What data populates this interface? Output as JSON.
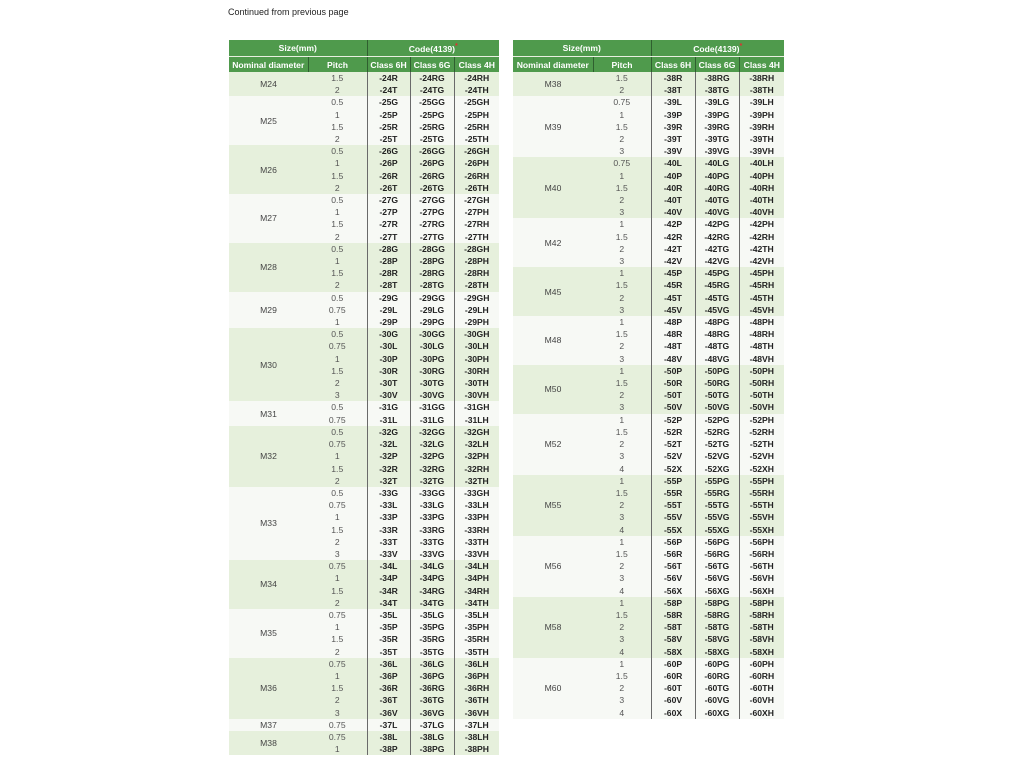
{
  "continued_note": "Continued from previous page",
  "headers": {
    "size": "Size(mm)",
    "code": "Code(4139)",
    "code_mark": "*",
    "nominal": "Nominal diameter",
    "pitch": "Pitch",
    "c6h": "Class 6H",
    "c6g": "Class 6G",
    "c4h": "Class 4H"
  },
  "colors": {
    "header_green": "#4f9a4c",
    "row_green": "#e6f0dc",
    "row_light": "#f7f9f5",
    "asterisk": "#e03030"
  },
  "left_table": [
    {
      "size": "M24",
      "rows": [
        [
          "1.5",
          "-24R",
          "-24RG",
          "-24RH"
        ],
        [
          "2",
          "-24T",
          "-24TG",
          "-24TH"
        ]
      ]
    },
    {
      "size": "M25",
      "rows": [
        [
          "0.5",
          "-25G",
          "-25GG",
          "-25GH"
        ],
        [
          "1",
          "-25P",
          "-25PG",
          "-25PH"
        ],
        [
          "1.5",
          "-25R",
          "-25RG",
          "-25RH"
        ],
        [
          "2",
          "-25T",
          "-25TG",
          "-25TH"
        ]
      ]
    },
    {
      "size": "M26",
      "rows": [
        [
          "0.5",
          "-26G",
          "-26GG",
          "-26GH"
        ],
        [
          "1",
          "-26P",
          "-26PG",
          "-26PH"
        ],
        [
          "1.5",
          "-26R",
          "-26RG",
          "-26RH"
        ],
        [
          "2",
          "-26T",
          "-26TG",
          "-26TH"
        ]
      ]
    },
    {
      "size": "M27",
      "rows": [
        [
          "0.5",
          "-27G",
          "-27GG",
          "-27GH"
        ],
        [
          "1",
          "-27P",
          "-27PG",
          "-27PH"
        ],
        [
          "1.5",
          "-27R",
          "-27RG",
          "-27RH"
        ],
        [
          "2",
          "-27T",
          "-27TG",
          "-27TH"
        ]
      ]
    },
    {
      "size": "M28",
      "rows": [
        [
          "0.5",
          "-28G",
          "-28GG",
          "-28GH"
        ],
        [
          "1",
          "-28P",
          "-28PG",
          "-28PH"
        ],
        [
          "1.5",
          "-28R",
          "-28RG",
          "-28RH"
        ],
        [
          "2",
          "-28T",
          "-28TG",
          "-28TH"
        ]
      ]
    },
    {
      "size": "M29",
      "rows": [
        [
          "0.5",
          "-29G",
          "-29GG",
          "-29GH"
        ],
        [
          "0.75",
          "-29L",
          "-29LG",
          "-29LH"
        ],
        [
          "1",
          "-29P",
          "-29PG",
          "-29PH"
        ]
      ]
    },
    {
      "size": "M30",
      "rows": [
        [
          "0.5",
          "-30G",
          "-30GG",
          "-30GH"
        ],
        [
          "0.75",
          "-30L",
          "-30LG",
          "-30LH"
        ],
        [
          "1",
          "-30P",
          "-30PG",
          "-30PH"
        ],
        [
          "1.5",
          "-30R",
          "-30RG",
          "-30RH"
        ],
        [
          "2",
          "-30T",
          "-30TG",
          "-30TH"
        ],
        [
          "3",
          "-30V",
          "-30VG",
          "-30VH"
        ]
      ]
    },
    {
      "size": "M31",
      "rows": [
        [
          "0.5",
          "-31G",
          "-31GG",
          "-31GH"
        ],
        [
          "0.75",
          "-31L",
          "-31LG",
          "-31LH"
        ]
      ]
    },
    {
      "size": "M32",
      "rows": [
        [
          "0.5",
          "-32G",
          "-32GG",
          "-32GH"
        ],
        [
          "0.75",
          "-32L",
          "-32LG",
          "-32LH"
        ],
        [
          "1",
          "-32P",
          "-32PG",
          "-32PH"
        ],
        [
          "1.5",
          "-32R",
          "-32RG",
          "-32RH"
        ],
        [
          "2",
          "-32T",
          "-32TG",
          "-32TH"
        ]
      ]
    },
    {
      "size": "M33",
      "rows": [
        [
          "0.5",
          "-33G",
          "-33GG",
          "-33GH"
        ],
        [
          "0.75",
          "-33L",
          "-33LG",
          "-33LH"
        ],
        [
          "1",
          "-33P",
          "-33PG",
          "-33PH"
        ],
        [
          "1.5",
          "-33R",
          "-33RG",
          "-33RH"
        ],
        [
          "2",
          "-33T",
          "-33TG",
          "-33TH"
        ],
        [
          "3",
          "-33V",
          "-33VG",
          "-33VH"
        ]
      ]
    },
    {
      "size": "M34",
      "rows": [
        [
          "0.75",
          "-34L",
          "-34LG",
          "-34LH"
        ],
        [
          "1",
          "-34P",
          "-34PG",
          "-34PH"
        ],
        [
          "1.5",
          "-34R",
          "-34RG",
          "-34RH"
        ],
        [
          "2",
          "-34T",
          "-34TG",
          "-34TH"
        ]
      ]
    },
    {
      "size": "M35",
      "rows": [
        [
          "0.75",
          "-35L",
          "-35LG",
          "-35LH"
        ],
        [
          "1",
          "-35P",
          "-35PG",
          "-35PH"
        ],
        [
          "1.5",
          "-35R",
          "-35RG",
          "-35RH"
        ],
        [
          "2",
          "-35T",
          "-35TG",
          "-35TH"
        ]
      ]
    },
    {
      "size": "M36",
      "rows": [
        [
          "0.75",
          "-36L",
          "-36LG",
          "-36LH"
        ],
        [
          "1",
          "-36P",
          "-36PG",
          "-36PH"
        ],
        [
          "1.5",
          "-36R",
          "-36RG",
          "-36RH"
        ],
        [
          "2",
          "-36T",
          "-36TG",
          "-36TH"
        ],
        [
          "3",
          "-36V",
          "-36VG",
          "-36VH"
        ]
      ]
    },
    {
      "size": "M37",
      "rows": [
        [
          "0.75",
          "-37L",
          "-37LG",
          "-37LH"
        ]
      ]
    },
    {
      "size": "M38",
      "rows": [
        [
          "0.75",
          "-38L",
          "-38LG",
          "-38LH"
        ],
        [
          "1",
          "-38P",
          "-38PG",
          "-38PH"
        ]
      ]
    }
  ],
  "right_table": [
    {
      "size": "M38",
      "rows": [
        [
          "1.5",
          "-38R",
          "-38RG",
          "-38RH"
        ],
        [
          "2",
          "-38T",
          "-38TG",
          "-38TH"
        ]
      ]
    },
    {
      "size": "M39",
      "rows": [
        [
          "0.75",
          "-39L",
          "-39LG",
          "-39LH"
        ],
        [
          "1",
          "-39P",
          "-39PG",
          "-39PH"
        ],
        [
          "1.5",
          "-39R",
          "-39RG",
          "-39RH"
        ],
        [
          "2",
          "-39T",
          "-39TG",
          "-39TH"
        ],
        [
          "3",
          "-39V",
          "-39VG",
          "-39VH"
        ]
      ]
    },
    {
      "size": "M40",
      "rows": [
        [
          "0.75",
          "-40L",
          "-40LG",
          "-40LH"
        ],
        [
          "1",
          "-40P",
          "-40PG",
          "-40PH"
        ],
        [
          "1.5",
          "-40R",
          "-40RG",
          "-40RH"
        ],
        [
          "2",
          "-40T",
          "-40TG",
          "-40TH"
        ],
        [
          "3",
          "-40V",
          "-40VG",
          "-40VH"
        ]
      ]
    },
    {
      "size": "M42",
      "rows": [
        [
          "1",
          "-42P",
          "-42PG",
          "-42PH"
        ],
        [
          "1.5",
          "-42R",
          "-42RG",
          "-42RH"
        ],
        [
          "2",
          "-42T",
          "-42TG",
          "-42TH"
        ],
        [
          "3",
          "-42V",
          "-42VG",
          "-42VH"
        ]
      ]
    },
    {
      "size": "M45",
      "rows": [
        [
          "1",
          "-45P",
          "-45PG",
          "-45PH"
        ],
        [
          "1.5",
          "-45R",
          "-45RG",
          "-45RH"
        ],
        [
          "2",
          "-45T",
          "-45TG",
          "-45TH"
        ],
        [
          "3",
          "-45V",
          "-45VG",
          "-45VH"
        ]
      ]
    },
    {
      "size": "M48",
      "rows": [
        [
          "1",
          "-48P",
          "-48PG",
          "-48PH"
        ],
        [
          "1.5",
          "-48R",
          "-48RG",
          "-48RH"
        ],
        [
          "2",
          "-48T",
          "-48TG",
          "-48TH"
        ],
        [
          "3",
          "-48V",
          "-48VG",
          "-48VH"
        ]
      ]
    },
    {
      "size": "M50",
      "rows": [
        [
          "1",
          "-50P",
          "-50PG",
          "-50PH"
        ],
        [
          "1.5",
          "-50R",
          "-50RG",
          "-50RH"
        ],
        [
          "2",
          "-50T",
          "-50TG",
          "-50TH"
        ],
        [
          "3",
          "-50V",
          "-50VG",
          "-50VH"
        ]
      ]
    },
    {
      "size": "M52",
      "rows": [
        [
          "1",
          "-52P",
          "-52PG",
          "-52PH"
        ],
        [
          "1.5",
          "-52R",
          "-52RG",
          "-52RH"
        ],
        [
          "2",
          "-52T",
          "-52TG",
          "-52TH"
        ],
        [
          "3",
          "-52V",
          "-52VG",
          "-52VH"
        ],
        [
          "4",
          "-52X",
          "-52XG",
          "-52XH"
        ]
      ]
    },
    {
      "size": "M55",
      "rows": [
        [
          "1",
          "-55P",
          "-55PG",
          "-55PH"
        ],
        [
          "1.5",
          "-55R",
          "-55RG",
          "-55RH"
        ],
        [
          "2",
          "-55T",
          "-55TG",
          "-55TH"
        ],
        [
          "3",
          "-55V",
          "-55VG",
          "-55VH"
        ],
        [
          "4",
          "-55X",
          "-55XG",
          "-55XH"
        ]
      ]
    },
    {
      "size": "M56",
      "rows": [
        [
          "1",
          "-56P",
          "-56PG",
          "-56PH"
        ],
        [
          "1.5",
          "-56R",
          "-56RG",
          "-56RH"
        ],
        [
          "2",
          "-56T",
          "-56TG",
          "-56TH"
        ],
        [
          "3",
          "-56V",
          "-56VG",
          "-56VH"
        ],
        [
          "4",
          "-56X",
          "-56XG",
          "-56XH"
        ]
      ]
    },
    {
      "size": "M58",
      "rows": [
        [
          "1",
          "-58P",
          "-58PG",
          "-58PH"
        ],
        [
          "1.5",
          "-58R",
          "-58RG",
          "-58RH"
        ],
        [
          "2",
          "-58T",
          "-58TG",
          "-58TH"
        ],
        [
          "3",
          "-58V",
          "-58VG",
          "-58VH"
        ],
        [
          "4",
          "-58X",
          "-58XG",
          "-58XH"
        ]
      ]
    },
    {
      "size": "M60",
      "rows": [
        [
          "1",
          "-60P",
          "-60PG",
          "-60PH"
        ],
        [
          "1.5",
          "-60R",
          "-60RG",
          "-60RH"
        ],
        [
          "2",
          "-60T",
          "-60TG",
          "-60TH"
        ],
        [
          "3",
          "-60V",
          "-60VG",
          "-60VH"
        ],
        [
          "4",
          "-60X",
          "-60XG",
          "-60XH"
        ]
      ]
    }
  ]
}
